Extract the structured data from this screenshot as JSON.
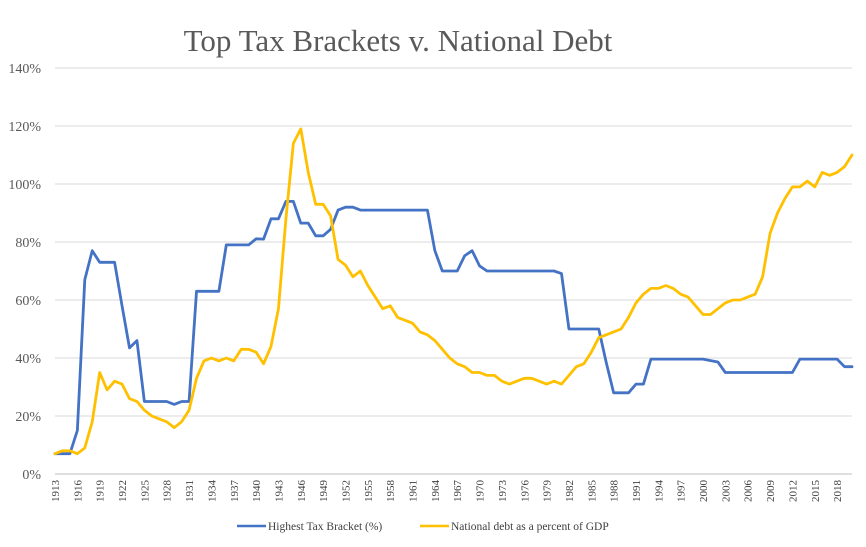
{
  "chart_data": {
    "type": "line",
    "title": "Top Tax Brackets v. National Debt",
    "xlabel": "",
    "ylabel": "",
    "ylim": [
      0,
      140
    ],
    "y_ticks": [
      "0%",
      "20%",
      "40%",
      "60%",
      "80%",
      "100%",
      "120%",
      "140%"
    ],
    "x_tick_labels": [
      "1913",
      "1916",
      "1919",
      "1922",
      "1925",
      "1928",
      "1931",
      "1934",
      "1937",
      "1940",
      "1943",
      "1946",
      "1949",
      "1952",
      "1955",
      "1958",
      "1961",
      "1964",
      "1967",
      "1970",
      "1973",
      "1976",
      "1979",
      "1982",
      "1985",
      "1988",
      "1991",
      "1994",
      "1997",
      "2000",
      "2003",
      "2006",
      "2009",
      "2012",
      "2015",
      "2018"
    ],
    "grid": true,
    "legend_position": "bottom",
    "x": [
      1913,
      1914,
      1915,
      1916,
      1917,
      1918,
      1919,
      1920,
      1921,
      1922,
      1923,
      1924,
      1925,
      1926,
      1927,
      1928,
      1929,
      1930,
      1931,
      1932,
      1933,
      1934,
      1935,
      1936,
      1937,
      1938,
      1939,
      1940,
      1941,
      1942,
      1943,
      1944,
      1945,
      1946,
      1947,
      1948,
      1949,
      1950,
      1951,
      1952,
      1953,
      1954,
      1955,
      1956,
      1957,
      1958,
      1959,
      1960,
      1961,
      1962,
      1963,
      1964,
      1965,
      1966,
      1967,
      1968,
      1969,
      1970,
      1971,
      1972,
      1973,
      1974,
      1975,
      1976,
      1977,
      1978,
      1979,
      1980,
      1981,
      1982,
      1983,
      1984,
      1985,
      1986,
      1987,
      1988,
      1989,
      1990,
      1991,
      1992,
      1993,
      1994,
      1995,
      1996,
      1997,
      1998,
      1999,
      2000,
      2001,
      2002,
      2003,
      2004,
      2005,
      2006,
      2007,
      2008,
      2009,
      2010,
      2011,
      2012,
      2013,
      2014,
      2015,
      2016,
      2017,
      2018,
      2019,
      2020
    ],
    "series": [
      {
        "name": "Highest Tax Bracket (%)",
        "color": "#4472c4",
        "values": [
          7,
          7,
          7,
          15,
          67,
          77,
          73,
          73,
          73,
          58,
          43.5,
          46,
          25,
          25,
          25,
          25,
          24,
          25,
          25,
          63,
          63,
          63,
          63,
          79,
          79,
          79,
          79,
          81.1,
          81,
          88,
          88,
          94,
          94,
          86.5,
          86.5,
          82.13,
          82.13,
          84.36,
          91,
          92,
          92,
          91,
          91,
          91,
          91,
          91,
          91,
          91,
          91,
          91,
          91,
          77,
          70,
          70,
          70,
          75.25,
          77,
          71.75,
          70,
          70,
          70,
          70,
          70,
          70,
          70,
          70,
          70,
          70,
          69.13,
          50,
          50,
          50,
          50,
          50,
          38.5,
          28,
          28,
          28,
          31,
          31,
          39.6,
          39.6,
          39.6,
          39.6,
          39.6,
          39.6,
          39.6,
          39.6,
          39.1,
          38.6,
          35,
          35,
          35,
          35,
          35,
          35,
          35,
          35,
          35,
          35,
          39.6,
          39.6,
          39.6,
          39.6,
          39.6,
          39.6,
          37,
          37
        ]
      },
      {
        "name": "National debt as a percent of GDP",
        "color": "#ffc000",
        "values": [
          7,
          8,
          8,
          7,
          9,
          18,
          35,
          29,
          32,
          31,
          26,
          25,
          22,
          20,
          19,
          18,
          16,
          18,
          22,
          33,
          39,
          40,
          39,
          40,
          39,
          43,
          43,
          42,
          38,
          44,
          57,
          88,
          114,
          119,
          104,
          93,
          93,
          89,
          74,
          72,
          68,
          70,
          65,
          61,
          57,
          58,
          54,
          53,
          52,
          49,
          48,
          46,
          43,
          40,
          38,
          37,
          35,
          35,
          34,
          34,
          32,
          31,
          32,
          33,
          33,
          32,
          31,
          32,
          31,
          34,
          37,
          38,
          42,
          47,
          48,
          49,
          50,
          54,
          59,
          62,
          64,
          64,
          65,
          64,
          62,
          61,
          58,
          55,
          55,
          57,
          59,
          60,
          60,
          61,
          62,
          68,
          83,
          90,
          95,
          99,
          99,
          101,
          99,
          104,
          103,
          104,
          106,
          110
        ]
      }
    ]
  }
}
